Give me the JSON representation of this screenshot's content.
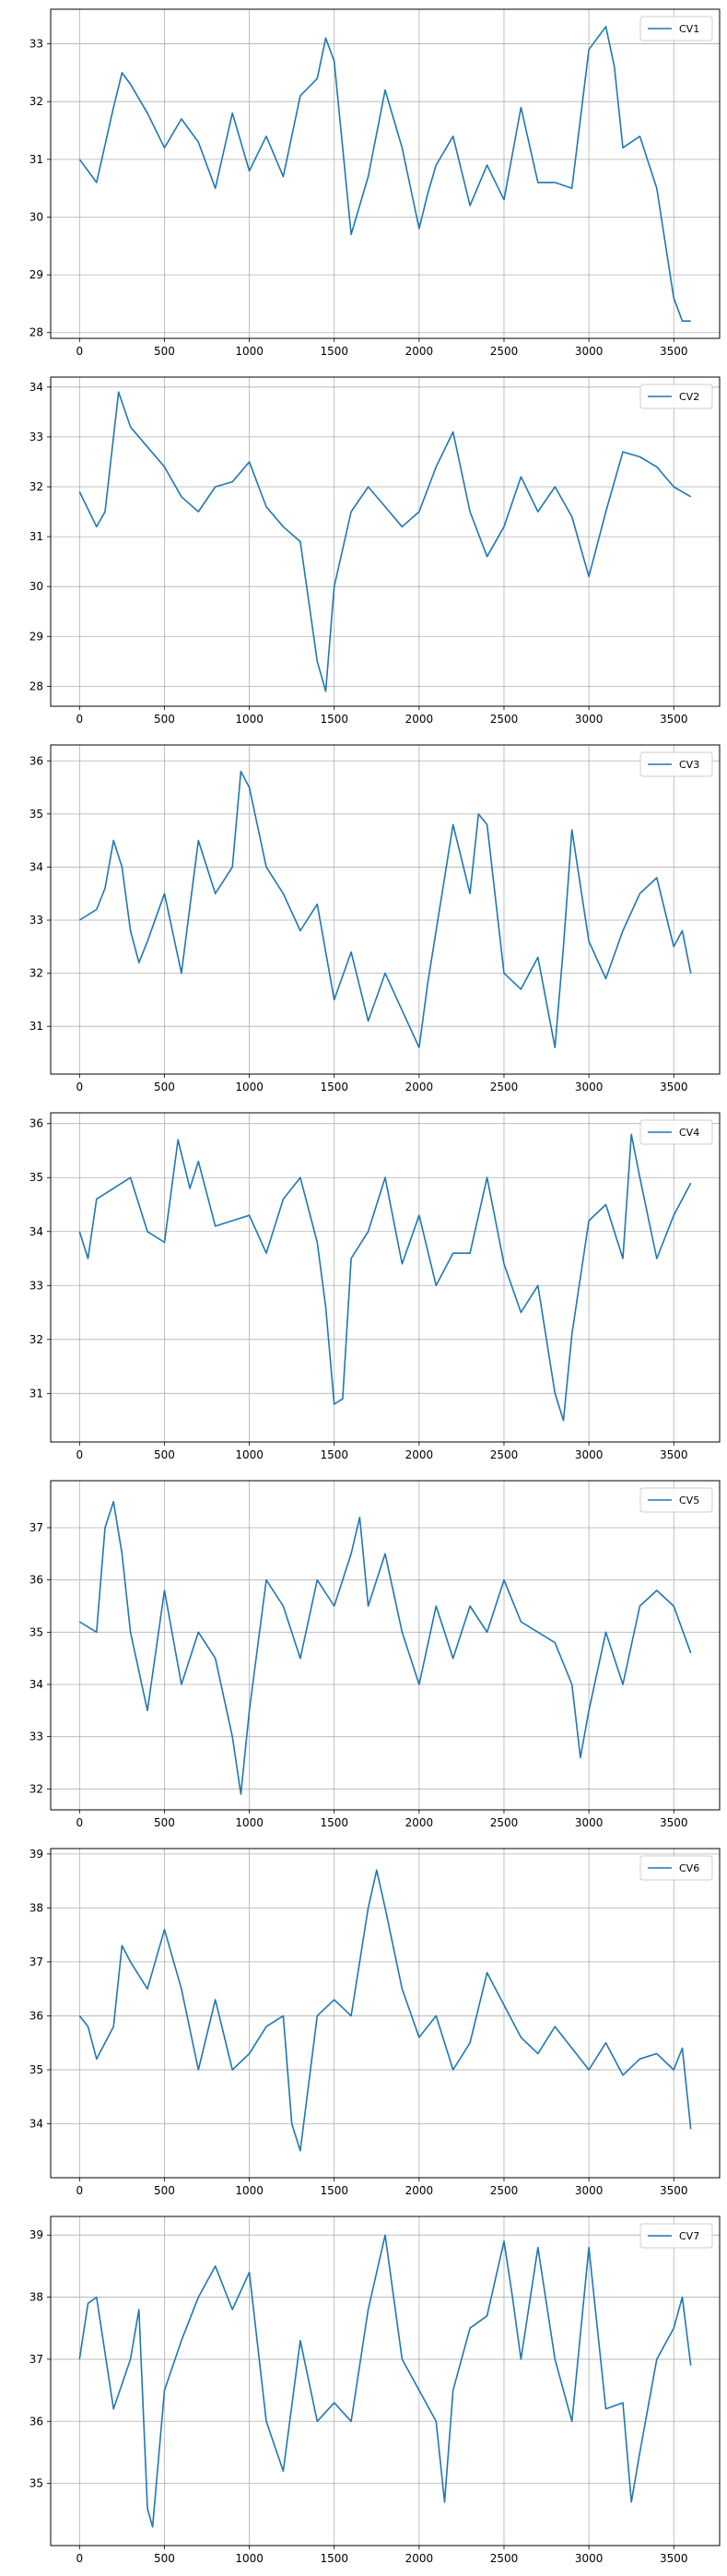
{
  "figure": {
    "line_color": "#1f77b4",
    "grid": true
  },
  "chart_data": [
    {
      "type": "line",
      "legend": "CV1",
      "legend_placement": "top-right",
      "xlim": [
        -170,
        3770
      ],
      "ylim": [
        27.9,
        33.6
      ],
      "xticks": [
        "0",
        "500",
        "1000",
        "1500",
        "2000",
        "2500",
        "3000",
        "3500"
      ],
      "yticks": [
        "28",
        "29",
        "30",
        "31",
        "32",
        "33"
      ],
      "x": [
        0,
        100,
        200,
        250,
        300,
        400,
        500,
        600,
        700,
        800,
        900,
        1000,
        1100,
        1200,
        1300,
        1400,
        1450,
        1500,
        1600,
        1700,
        1800,
        1900,
        2000,
        2050,
        2100,
        2200,
        2300,
        2400,
        2500,
        2600,
        2700,
        2800,
        2900,
        3000,
        3100,
        3150,
        3200,
        3300,
        3400,
        3500,
        3550,
        3600
      ],
      "y": [
        31.0,
        30.6,
        31.9,
        32.5,
        32.3,
        31.8,
        31.2,
        31.7,
        31.3,
        30.5,
        31.8,
        30.8,
        31.4,
        30.7,
        32.1,
        32.4,
        33.1,
        32.7,
        29.7,
        30.7,
        32.2,
        31.2,
        29.8,
        30.4,
        30.9,
        31.4,
        30.2,
        30.9,
        30.3,
        31.9,
        30.6,
        30.6,
        30.5,
        32.9,
        33.3,
        32.6,
        31.2,
        31.4,
        30.5,
        28.6,
        28.2,
        28.2
      ]
    },
    {
      "type": "line",
      "legend": "CV2",
      "legend_placement": "top-right",
      "xlim": [
        -170,
        3770
      ],
      "ylim": [
        27.6,
        34.2
      ],
      "xticks": [
        "0",
        "500",
        "1000",
        "1500",
        "2000",
        "2500",
        "3000",
        "3500"
      ],
      "yticks": [
        "28",
        "29",
        "30",
        "31",
        "32",
        "33",
        "34"
      ],
      "x": [
        0,
        100,
        150,
        200,
        230,
        300,
        400,
        500,
        600,
        700,
        800,
        900,
        1000,
        1100,
        1200,
        1300,
        1400,
        1450,
        1500,
        1600,
        1700,
        1800,
        1900,
        2000,
        2100,
        2200,
        2300,
        2400,
        2500,
        2600,
        2700,
        2800,
        2900,
        3000,
        3100,
        3200,
        3300,
        3400,
        3500,
        3600
      ],
      "y": [
        31.9,
        31.2,
        31.5,
        33.0,
        33.9,
        33.2,
        32.8,
        32.4,
        31.8,
        31.5,
        32.0,
        32.1,
        32.5,
        31.6,
        31.2,
        30.9,
        28.5,
        27.9,
        30.0,
        31.5,
        32.0,
        31.6,
        31.2,
        31.5,
        32.4,
        33.1,
        31.5,
        30.6,
        31.2,
        32.2,
        31.5,
        32.0,
        31.4,
        30.2,
        31.5,
        32.7,
        32.6,
        32.4,
        32.0,
        31.8
      ]
    },
    {
      "type": "line",
      "legend": "CV3",
      "legend_placement": "top-right",
      "xlim": [
        -170,
        3770
      ],
      "ylim": [
        30.1,
        36.3
      ],
      "xticks": [
        "0",
        "500",
        "1000",
        "1500",
        "2000",
        "2500",
        "3000",
        "3500"
      ],
      "yticks": [
        "31",
        "32",
        "33",
        "34",
        "35",
        "36"
      ],
      "x": [
        0,
        100,
        150,
        200,
        250,
        300,
        350,
        400,
        500,
        600,
        700,
        800,
        900,
        950,
        1000,
        1100,
        1200,
        1300,
        1400,
        1500,
        1600,
        1700,
        1800,
        1900,
        2000,
        2050,
        2100,
        2200,
        2300,
        2350,
        2400,
        2500,
        2600,
        2700,
        2800,
        2850,
        2900,
        3000,
        3100,
        3200,
        3300,
        3400,
        3500,
        3550,
        3600
      ],
      "y": [
        33.0,
        33.2,
        33.6,
        34.5,
        34.0,
        32.8,
        32.2,
        32.6,
        33.5,
        32.0,
        34.5,
        33.5,
        34.0,
        35.8,
        35.5,
        34.0,
        33.5,
        32.8,
        33.3,
        31.5,
        32.4,
        31.1,
        32.0,
        31.3,
        30.6,
        31.8,
        32.8,
        34.8,
        33.5,
        35.0,
        34.8,
        32.0,
        31.7,
        32.3,
        30.6,
        32.5,
        34.7,
        32.6,
        31.9,
        32.8,
        33.5,
        33.8,
        32.5,
        32.8,
        32.0
      ]
    },
    {
      "type": "line",
      "legend": "CV4",
      "legend_placement": "top-right",
      "xlim": [
        -170,
        3770
      ],
      "ylim": [
        30.1,
        36.2
      ],
      "xticks": [
        "0",
        "500",
        "1000",
        "1500",
        "2000",
        "2500",
        "3000",
        "3500"
      ],
      "yticks": [
        "31",
        "32",
        "33",
        "34",
        "35",
        "36"
      ],
      "x": [
        0,
        50,
        100,
        200,
        300,
        400,
        500,
        580,
        650,
        700,
        800,
        900,
        1000,
        1100,
        1200,
        1300,
        1400,
        1450,
        1500,
        1550,
        1600,
        1700,
        1800,
        1900,
        2000,
        2100,
        2200,
        2300,
        2400,
        2500,
        2600,
        2700,
        2800,
        2850,
        2900,
        3000,
        3100,
        3200,
        3250,
        3300,
        3400,
        3500,
        3600
      ],
      "y": [
        34.0,
        33.5,
        34.6,
        34.8,
        35.0,
        34.0,
        33.8,
        35.7,
        34.8,
        35.3,
        34.1,
        34.2,
        34.3,
        33.6,
        34.6,
        35.0,
        33.8,
        32.6,
        30.8,
        30.9,
        33.5,
        34.0,
        35.0,
        33.4,
        34.3,
        33.0,
        33.6,
        33.6,
        35.0,
        33.4,
        32.5,
        33.0,
        31.0,
        30.5,
        32.1,
        34.2,
        34.5,
        33.5,
        35.8,
        35.0,
        33.5,
        34.3,
        34.9
      ]
    },
    {
      "type": "line",
      "legend": "CV5",
      "legend_placement": "top-right",
      "xlim": [
        -170,
        3770
      ],
      "ylim": [
        31.6,
        37.9
      ],
      "xticks": [
        "0",
        "500",
        "1000",
        "1500",
        "2000",
        "2500",
        "3000",
        "3500"
      ],
      "yticks": [
        "32",
        "33",
        "34",
        "35",
        "36",
        "37"
      ],
      "x": [
        0,
        100,
        150,
        200,
        250,
        300,
        400,
        500,
        600,
        700,
        800,
        900,
        950,
        1000,
        1100,
        1200,
        1300,
        1400,
        1500,
        1600,
        1650,
        1700,
        1800,
        1900,
        2000,
        2100,
        2200,
        2300,
        2400,
        2500,
        2600,
        2700,
        2800,
        2900,
        2950,
        3000,
        3100,
        3200,
        3300,
        3400,
        3500,
        3600
      ],
      "y": [
        35.2,
        35.0,
        37.0,
        37.5,
        36.5,
        35.0,
        33.5,
        35.8,
        34.0,
        35.0,
        34.5,
        33.0,
        31.9,
        33.5,
        36.0,
        35.5,
        34.5,
        36.0,
        35.5,
        36.5,
        37.2,
        35.5,
        36.5,
        35.0,
        34.0,
        35.5,
        34.5,
        35.5,
        35.0,
        36.0,
        35.2,
        35.0,
        34.8,
        34.0,
        32.6,
        33.5,
        35.0,
        34.0,
        35.5,
        35.8,
        35.5,
        34.6
      ]
    },
    {
      "type": "line",
      "legend": "CV6",
      "legend_placement": "top-right",
      "xlim": [
        -170,
        3770
      ],
      "ylim": [
        33.0,
        39.1
      ],
      "xticks": [
        "0",
        "500",
        "1000",
        "1500",
        "2000",
        "2500",
        "3000",
        "3500"
      ],
      "yticks": [
        "34",
        "35",
        "36",
        "37",
        "38",
        "39"
      ],
      "x": [
        0,
        50,
        100,
        200,
        250,
        300,
        400,
        500,
        600,
        700,
        800,
        900,
        1000,
        1100,
        1200,
        1250,
        1300,
        1400,
        1500,
        1600,
        1700,
        1750,
        1800,
        1900,
        2000,
        2100,
        2200,
        2300,
        2400,
        2500,
        2600,
        2700,
        2800,
        2900,
        3000,
        3100,
        3200,
        3300,
        3400,
        3500,
        3550,
        3600
      ],
      "y": [
        36.0,
        35.8,
        35.2,
        35.8,
        37.3,
        37.0,
        36.5,
        37.6,
        36.5,
        35.0,
        36.3,
        35.0,
        35.3,
        35.8,
        36.0,
        34.0,
        33.5,
        36.0,
        36.3,
        36.0,
        38.0,
        38.7,
        38.0,
        36.5,
        35.6,
        36.0,
        35.0,
        35.5,
        36.8,
        36.2,
        35.6,
        35.3,
        35.8,
        35.4,
        35.0,
        35.5,
        34.9,
        35.2,
        35.3,
        35.0,
        35.4,
        33.9
      ]
    },
    {
      "type": "line",
      "legend": "CV7",
      "legend_placement": "top-right",
      "xlim": [
        -170,
        3770
      ],
      "ylim": [
        34.0,
        39.3
      ],
      "xticks": [
        "0",
        "500",
        "1000",
        "1500",
        "2000",
        "2500",
        "3000",
        "3500"
      ],
      "yticks": [
        "35",
        "36",
        "37",
        "38",
        "39"
      ],
      "x": [
        0,
        50,
        100,
        200,
        300,
        350,
        400,
        430,
        500,
        600,
        700,
        800,
        900,
        1000,
        1100,
        1200,
        1300,
        1400,
        1500,
        1600,
        1700,
        1800,
        1850,
        1900,
        2000,
        2100,
        2150,
        2200,
        2300,
        2400,
        2500,
        2550,
        2600,
        2700,
        2800,
        2900,
        3000,
        3100,
        3200,
        3250,
        3300,
        3400,
        3500,
        3550,
        3600
      ],
      "y": [
        37.0,
        37.9,
        38.0,
        36.2,
        37.0,
        37.8,
        34.6,
        34.3,
        36.5,
        37.3,
        38.0,
        38.5,
        37.8,
        38.4,
        36.0,
        35.2,
        37.3,
        36.0,
        36.3,
        36.0,
        37.8,
        39.0,
        38.0,
        37.0,
        36.5,
        36.0,
        34.7,
        36.5,
        37.5,
        37.7,
        38.9,
        38.0,
        37.0,
        38.8,
        37.0,
        36.0,
        38.8,
        36.2,
        36.3,
        34.7,
        35.5,
        37.0,
        37.5,
        38.0,
        36.9
      ]
    }
  ]
}
